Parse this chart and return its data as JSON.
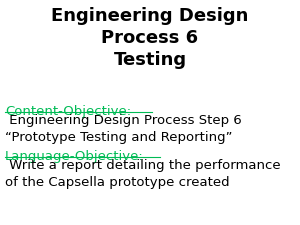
{
  "title_lines": [
    "Engineering Design",
    "Process 6",
    "Testing"
  ],
  "title_color": "#000000",
  "title_fontsize": 13,
  "background_color": "#ffffff",
  "content_label": "Content-Objective:",
  "content_label_color": "#00bb55",
  "content_text": " Engineering Design Process Step 6\n“Prototype Testing and Reporting”",
  "content_text_color": "#000000",
  "language_label": "Language-Objective:",
  "language_label_color": "#00bb55",
  "language_text": " Write a report detailing the performance\nof the Capsella prototype created",
  "language_text_color": "#000000",
  "body_fontsize": 9.5
}
